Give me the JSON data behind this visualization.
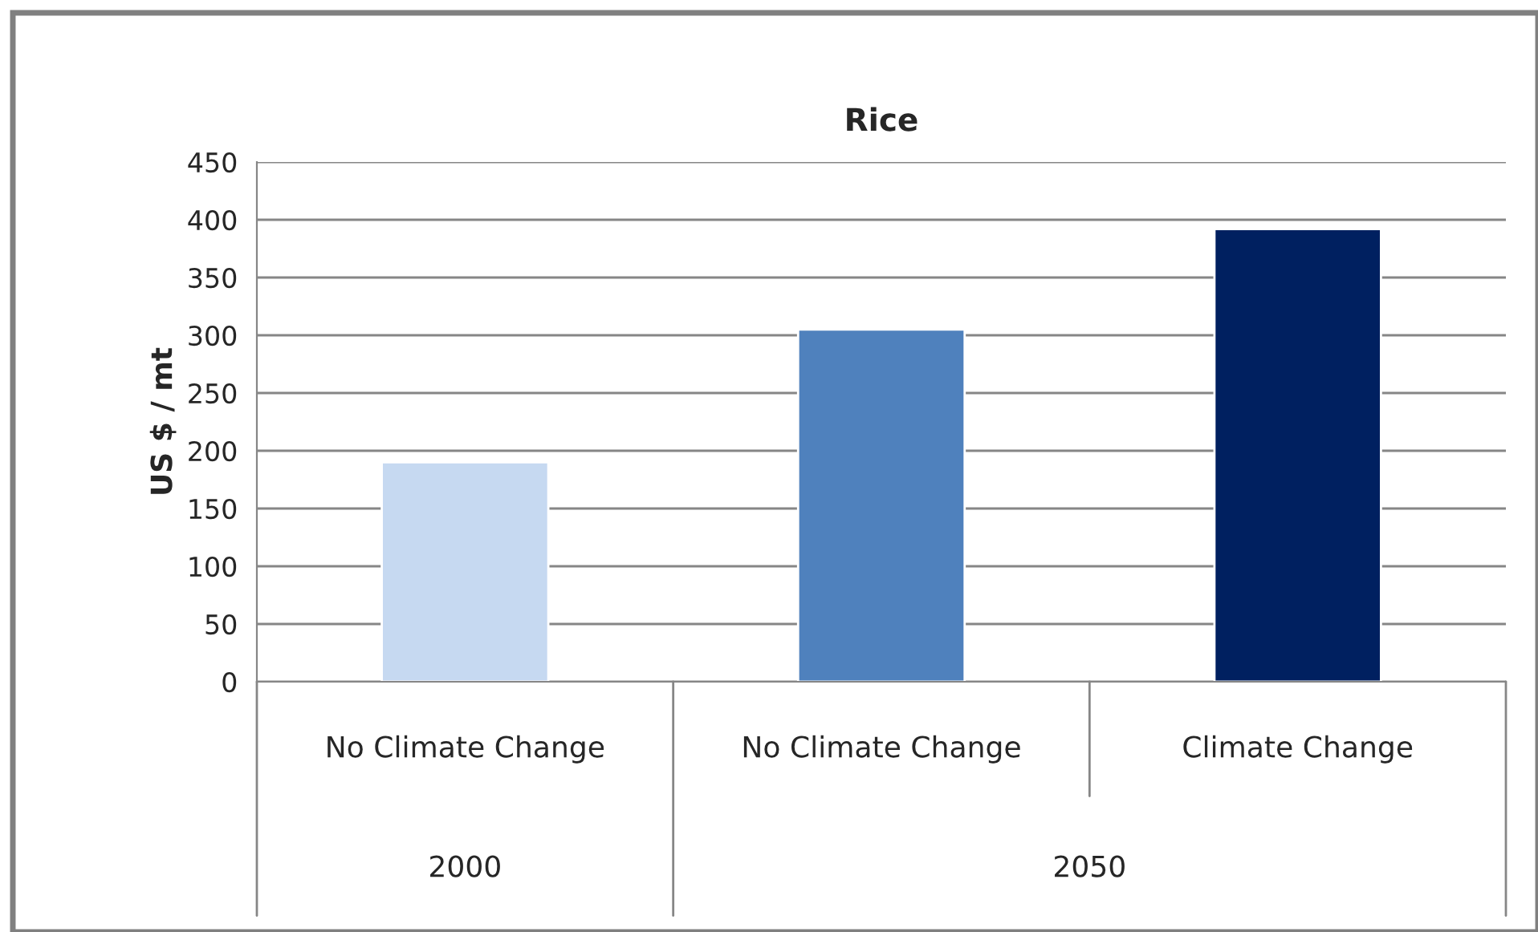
{
  "chart_data": {
    "type": "bar",
    "title": "Rice",
    "ylabel": "US $ / mt",
    "categories": [
      "No Climate Change",
      "No Climate Change",
      "Climate Change"
    ],
    "values": [
      190,
      305,
      392
    ],
    "colors": [
      "#c6d9f1",
      "#4f81bd",
      "#002060"
    ],
    "ylim": [
      0,
      450
    ],
    "yticks": [
      0,
      50,
      100,
      150,
      200,
      250,
      300,
      350,
      400,
      450
    ],
    "grid": "y",
    "legend": false,
    "annotations": [
      "2000",
      "2050"
    ]
  }
}
